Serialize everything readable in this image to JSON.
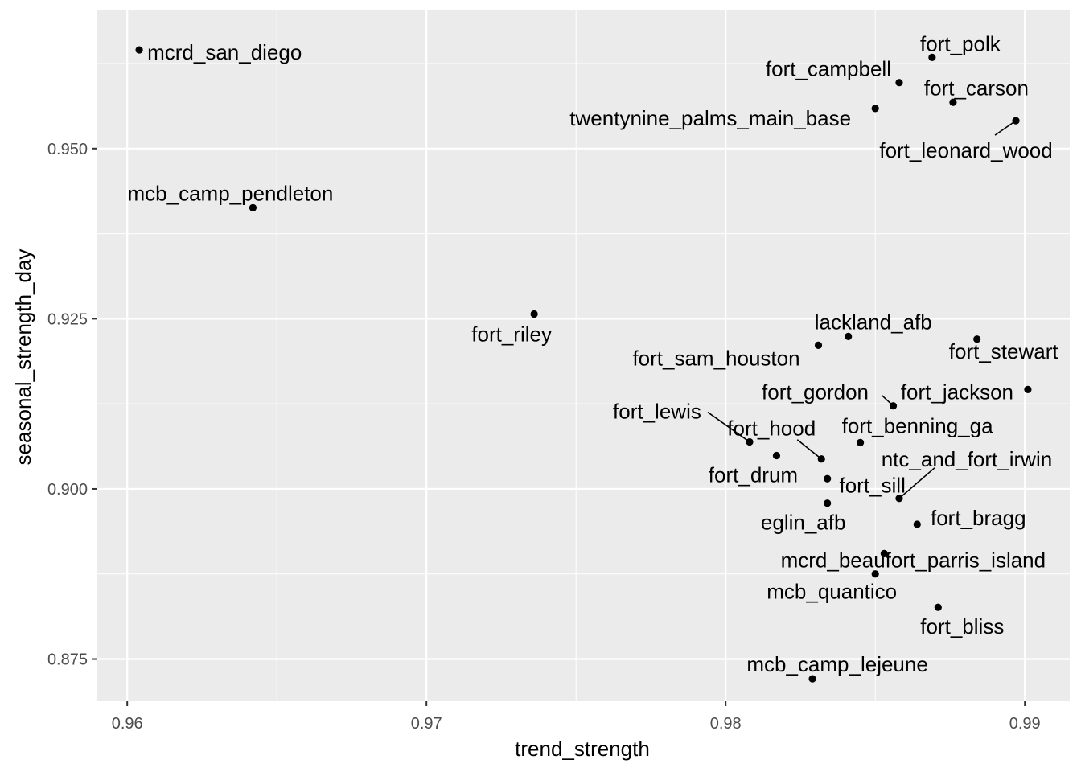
{
  "colors": {
    "panel_background": "#ebebeb",
    "grid_major": "#ffffff",
    "point": "#000000",
    "tick_text": "#4d4d4d"
  },
  "chart_data": {
    "type": "scatter",
    "title": "",
    "xlabel": "trend_strength",
    "ylabel": "seasonal_strength_day",
    "xlim": [
      0.959,
      0.9915
    ],
    "ylim": [
      0.8688,
      0.9703
    ],
    "x_ticks": [
      0.96,
      0.97,
      0.98,
      0.99
    ],
    "x_tick_labels": [
      "0.96",
      "0.97",
      "0.98",
      "0.99"
    ],
    "y_ticks": [
      0.875,
      0.9,
      0.925,
      0.95
    ],
    "y_tick_labels": [
      "0.875",
      "0.900",
      "0.925",
      "0.950"
    ],
    "grid": true,
    "legend": "none",
    "points": [
      {
        "label": "mcrd_san_diego",
        "x": 0.9604,
        "y": 0.9645
      },
      {
        "label": "mcb_camp_pendleton",
        "x": 0.9642,
        "y": 0.9413
      },
      {
        "label": "fort_riley",
        "x": 0.9736,
        "y": 0.9257
      },
      {
        "label": "fort_polk",
        "x": 0.9869,
        "y": 0.9634
      },
      {
        "label": "fort_campbell",
        "x": 0.9858,
        "y": 0.9597
      },
      {
        "label": "fort_carson",
        "x": 0.9876,
        "y": 0.9568
      },
      {
        "label": "twentynine_palms_main_base",
        "x": 0.985,
        "y": 0.9559
      },
      {
        "label": "fort_leonard_wood",
        "x": 0.9897,
        "y": 0.9541
      },
      {
        "label": "lackland_afb",
        "x": 0.9841,
        "y": 0.9224
      },
      {
        "label": "fort_stewart",
        "x": 0.9884,
        "y": 0.922
      },
      {
        "label": "fort_sam_houston",
        "x": 0.9831,
        "y": 0.9211
      },
      {
        "label": "fort_jackson",
        "x": 0.9901,
        "y": 0.9146
      },
      {
        "label": "fort_gordon",
        "x": 0.9856,
        "y": 0.9122
      },
      {
        "label": "fort_lewis",
        "x": 0.9808,
        "y": 0.9069
      },
      {
        "label": "fort_benning_ga",
        "x": 0.9845,
        "y": 0.9068
      },
      {
        "label": "fort_drum",
        "x": 0.9817,
        "y": 0.9049
      },
      {
        "label": "fort_hood",
        "x": 0.9832,
        "y": 0.9044
      },
      {
        "label": "fort_sill",
        "x": 0.9834,
        "y": 0.9015
      },
      {
        "label": "ntc_and_fort_irwin",
        "x": 0.9858,
        "y": 0.8986
      },
      {
        "label": "eglin_afb",
        "x": 0.9834,
        "y": 0.8979
      },
      {
        "label": "fort_bragg",
        "x": 0.9864,
        "y": 0.8948
      },
      {
        "label": "mcrd_beaufort_parris_island",
        "x": 0.9853,
        "y": 0.8905
      },
      {
        "label": "mcb_quantico",
        "x": 0.985,
        "y": 0.8875
      },
      {
        "label": "fort_bliss",
        "x": 0.9871,
        "y": 0.8826
      },
      {
        "label": "mcb_camp_lejeune",
        "x": 0.9829,
        "y": 0.8721
      }
    ]
  }
}
